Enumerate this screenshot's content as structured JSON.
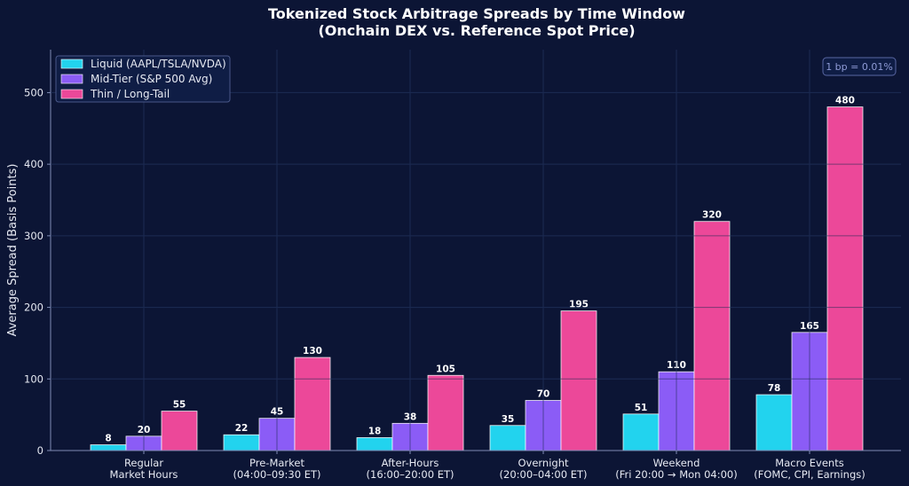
{
  "colors": {
    "background": "#0c1535",
    "grid": "#1c2a52",
    "axis": "#7f8bb5",
    "text": "#e6e9f2"
  },
  "chart_data": {
    "type": "bar",
    "title": [
      "Tokenized Stock Arbitrage Spreads by Time Window",
      "(Onchain DEX vs. Reference Spot Price)"
    ],
    "xlabel": "",
    "ylabel": "Average Spread (Basis Points)",
    "ylim": [
      0,
      560
    ],
    "yticks": [
      0,
      100,
      200,
      300,
      400,
      500
    ],
    "grid": true,
    "legend_position": "top-left",
    "note": "1 bp = 0.01%",
    "categories": [
      [
        "Regular",
        "Market Hours"
      ],
      [
        "Pre-Market",
        "(04:00–09:30 ET)"
      ],
      [
        "After-Hours",
        "(16:00–20:00 ET)"
      ],
      [
        "Overnight",
        "(20:00–04:00 ET)"
      ],
      [
        "Weekend",
        "(Fri 20:00 → Mon 04:00)"
      ],
      [
        "Macro Events",
        "(FOMC, CPI, Earnings)"
      ]
    ],
    "series": [
      {
        "name": "Liquid (AAPL/TSLA/NVDA)",
        "color": "#22d3ee",
        "values": [
          8,
          22,
          18,
          35,
          51,
          78
        ]
      },
      {
        "name": "Mid-Tier (S&P 500 Avg)",
        "color": "#8b5cf6",
        "values": [
          20,
          45,
          38,
          70,
          110,
          165
        ]
      },
      {
        "name": "Thin / Long-Tail",
        "color": "#ec4899",
        "values": [
          55,
          130,
          105,
          195,
          320,
          480
        ]
      }
    ]
  }
}
